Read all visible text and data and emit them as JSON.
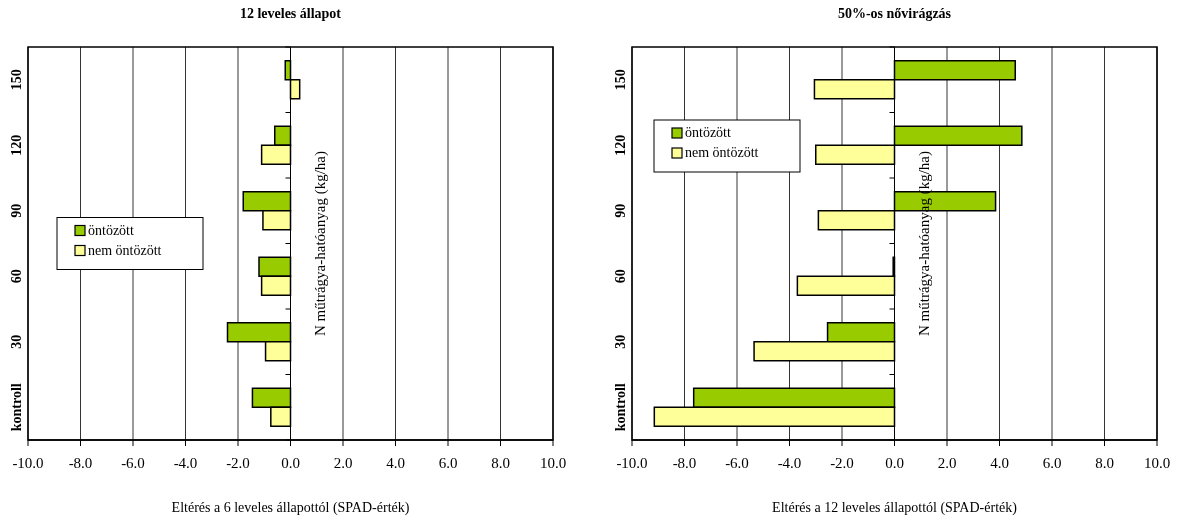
{
  "chart_data": [
    {
      "type": "bar",
      "orientation": "horizontal",
      "title": "12 leveles állapot",
      "xlabel": "Eltérés a 6 leveles állapottól (SPAD-érték)",
      "ylabel": "N műtrágya-hatóanyag (kg/ha)",
      "categories": [
        "150",
        "120",
        "90",
        "60",
        "30",
        "kontroll"
      ],
      "series": [
        {
          "name": "öntözött",
          "color": "#99cc00",
          "values": [
            -0.2,
            -0.6,
            -1.8,
            -1.2,
            -2.4,
            -1.45
          ]
        },
        {
          "name": "nem öntözött",
          "color": "#ffff99",
          "values": [
            0.35,
            -1.1,
            -1.05,
            -1.1,
            -0.95,
            -0.75
          ]
        }
      ],
      "xlim": [
        -10,
        10
      ],
      "xticks": [
        {
          "value": -10,
          "label": "-10.0"
        },
        {
          "value": -8,
          "label": "-8.0"
        },
        {
          "value": -6,
          "label": "-6.0"
        },
        {
          "value": -4,
          "label": "-4.0"
        },
        {
          "value": -2,
          "label": "-2.0"
        },
        {
          "value": 0,
          "label": "0.0"
        },
        {
          "value": 2,
          "label": "2.0"
        },
        {
          "value": 4,
          "label": "4.0"
        },
        {
          "value": 6,
          "label": "6.0"
        },
        {
          "value": 8,
          "label": "8.0"
        },
        {
          "value": 10,
          "label": "10.0"
        }
      ],
      "grid": "x",
      "legend": "left"
    },
    {
      "type": "bar",
      "orientation": "horizontal",
      "title": "50%-os nővirágzás",
      "xlabel": "Eltérés a 12 leveles állapottól (SPAD-érték)",
      "ylabel": "N műtrágya-hatóanyag (kg/ha)",
      "categories": [
        "150",
        "120",
        "90",
        "60",
        "30",
        "kontroll"
      ],
      "series": [
        {
          "name": "öntözött",
          "color": "#99cc00",
          "values": [
            4.6,
            4.85,
            3.85,
            -0.05,
            -2.55,
            -7.65
          ]
        },
        {
          "name": "nem öntözött",
          "color": "#ffff99",
          "values": [
            -3.05,
            -3.0,
            -2.9,
            -3.7,
            -5.35,
            -9.15
          ]
        }
      ],
      "xlim": [
        -10,
        10
      ],
      "xticks": [
        {
          "value": -10,
          "label": "-10.0"
        },
        {
          "value": -8,
          "label": "-8.0"
        },
        {
          "value": -6,
          "label": "-6.0"
        },
        {
          "value": -4,
          "label": "-4.0"
        },
        {
          "value": -2,
          "label": "-2.0"
        },
        {
          "value": 0,
          "label": "0.0"
        },
        {
          "value": 2,
          "label": "2.0"
        },
        {
          "value": 4,
          "label": "4.0"
        },
        {
          "value": 6,
          "label": "6.0"
        },
        {
          "value": 8,
          "label": "8.0"
        },
        {
          "value": 10,
          "label": "10.0"
        }
      ],
      "grid": "x",
      "legend": "top left"
    }
  ]
}
